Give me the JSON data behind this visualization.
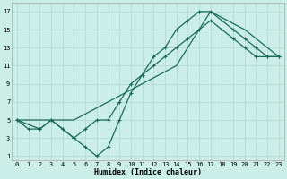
{
  "xlabel": "Humidex (Indice chaleur)",
  "bg_color": "#cceee8",
  "line_color": "#1a6b5a",
  "grid_color": "#b8ddd8",
  "xlim": [
    -0.5,
    23.5
  ],
  "ylim": [
    0.5,
    18
  ],
  "xticks": [
    0,
    1,
    2,
    3,
    4,
    5,
    6,
    7,
    8,
    9,
    10,
    11,
    12,
    13,
    14,
    15,
    16,
    17,
    18,
    19,
    20,
    21,
    22,
    23
  ],
  "yticks": [
    1,
    3,
    5,
    7,
    9,
    11,
    13,
    15,
    17
  ],
  "line1_x": [
    0,
    1,
    2,
    3,
    4,
    5,
    6,
    7,
    8,
    9,
    10,
    11,
    12,
    13,
    14,
    15,
    16,
    17,
    18,
    19,
    20,
    21,
    22,
    23
  ],
  "line1_y": [
    5,
    4,
    4,
    5,
    4,
    3,
    2,
    1,
    2,
    5,
    8,
    10,
    12,
    13,
    15,
    16,
    17,
    17,
    16,
    15,
    14,
    13,
    12,
    12
  ],
  "line2_x": [
    0,
    2,
    3,
    4,
    5,
    6,
    7,
    8,
    9,
    10,
    11,
    12,
    13,
    14,
    15,
    16,
    17,
    18,
    19,
    20,
    21,
    22,
    23
  ],
  "line2_y": [
    5,
    4,
    5,
    4,
    3,
    4,
    5,
    5,
    7,
    9,
    10,
    11,
    12,
    13,
    14,
    15,
    16,
    15,
    14,
    13,
    12,
    12,
    12
  ],
  "line3_x": [
    0,
    3,
    5,
    14,
    17,
    20,
    23
  ],
  "line3_y": [
    5,
    5,
    5,
    11,
    17,
    15,
    12
  ]
}
